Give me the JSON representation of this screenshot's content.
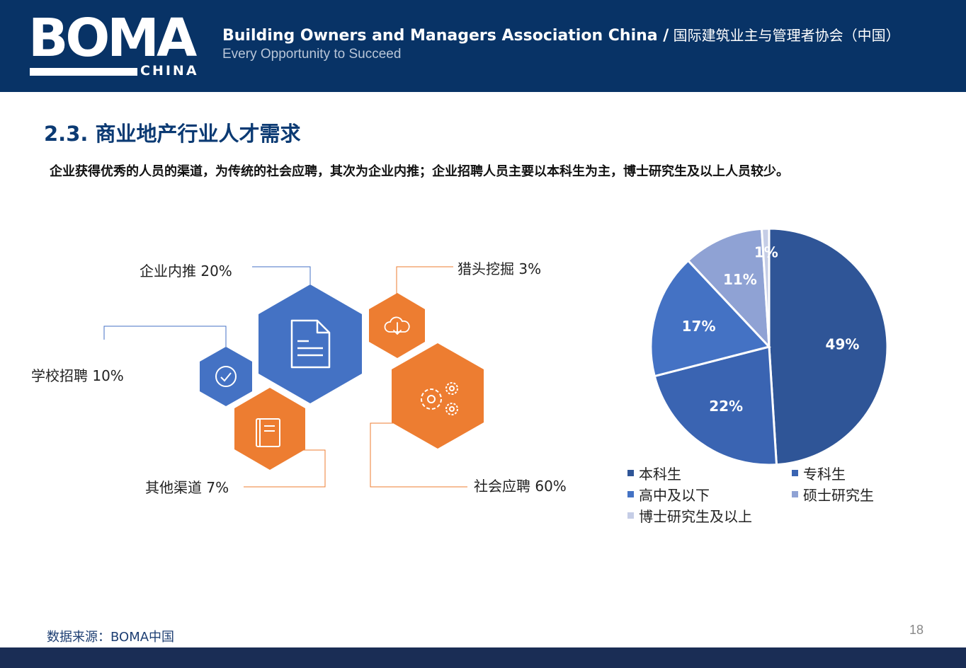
{
  "header": {
    "logo_text": "BOMA",
    "logo_sub": "CHINA",
    "org_name_en": "Building Owners and Managers Association China /",
    "org_name_cn": " 国际建筑业主与管理者协会（中国）",
    "tagline": "Every Opportunity to Succeed"
  },
  "page": {
    "title": "2.3. 商业地产行业人才需求",
    "subtitle": "企业获得优秀的人员的渠道，为传统的社会应聘，其次为企业内推；企业招聘人员主要以本科生为主，博士研究生及以上人员较少。",
    "source": "数据来源：BOMA中国",
    "page_number": "18"
  },
  "colors": {
    "header_bg": "#083366",
    "blue": "#4472c4",
    "orange": "#ed7d31",
    "footer": "#1a2d55"
  },
  "chart_data": [
    {
      "type": "infographic",
      "categories": [
        "企业内推",
        "猎头挖掘",
        "学校招聘",
        "社会应聘",
        "其他渠道"
      ],
      "values": [
        20,
        3,
        10,
        60,
        7
      ],
      "labels": [
        "企业内推 20%",
        "猎头挖掘 3%",
        "学校招聘 10%",
        "社会应聘 60%",
        "其他渠道 7%"
      ],
      "icons": [
        "document-icon",
        "cloud-download-icon",
        "check-circle-icon",
        "gears-icon",
        "book-icon"
      ],
      "colors": [
        "#4472c4",
        "#ed7d31",
        "#4472c4",
        "#ed7d31",
        "#ed7d31"
      ]
    },
    {
      "type": "pie",
      "categories": [
        "本科生",
        "专科生",
        "高中及以下",
        "硕士研究生",
        "博士研究生及以上"
      ],
      "values": [
        49,
        22,
        17,
        11,
        1
      ],
      "data_labels": [
        "49%",
        "22%",
        "17%",
        "11%",
        "1%"
      ],
      "colors": [
        "#2f5597",
        "#3a64b2",
        "#4472c4",
        "#8fa2d4",
        "#c5cde6"
      ],
      "legend_position": "bottom"
    }
  ]
}
